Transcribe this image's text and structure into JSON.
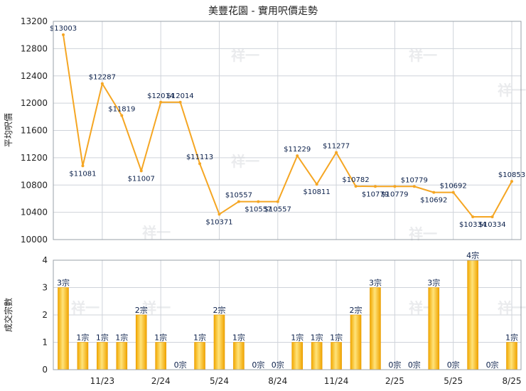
{
  "chart_data": [
    {
      "type": "line",
      "title": "美豐花園 - 實用呎價走勢",
      "ylabel": "平均呎價",
      "ylim": [
        10000,
        13200
      ],
      "yticks": [
        10000,
        10400,
        10800,
        11200,
        11600,
        12000,
        12400,
        12800,
        13200
      ],
      "x_tick_labels": [
        "11/23",
        "2/24",
        "5/24",
        "8/24",
        "11/24",
        "2/25",
        "5/25",
        "8/25"
      ],
      "values": [
        13003,
        11081,
        12287,
        11819,
        11007,
        12014,
        12014,
        11113,
        10371,
        10557,
        10557,
        10557,
        11229,
        10811,
        11277,
        10782,
        10779,
        10779,
        10779,
        10692,
        10692,
        10334,
        10334,
        10853
      ],
      "data_labels": [
        "$13003",
        "$11081",
        "$12287",
        "$11819",
        "$11007",
        "$12014",
        "$12014",
        "$11113",
        "$10371",
        "$10557",
        "$10557",
        "$10557",
        "$11229",
        "$10811",
        "$11277",
        "$10782",
        "$10779",
        "$10779",
        "$10779",
        "$10692",
        "$10692",
        "$10334",
        "$10334",
        "$10853"
      ],
      "color": "#f5a623",
      "grid": true
    },
    {
      "type": "bar",
      "ylabel": "成交宗數",
      "ylim": [
        0,
        4
      ],
      "yticks": [
        0,
        1,
        2,
        3,
        4
      ],
      "x_tick_labels": [
        "11/23",
        "2/24",
        "5/24",
        "8/24",
        "11/24",
        "2/25",
        "5/25",
        "8/25"
      ],
      "values": [
        3,
        1,
        1,
        1,
        2,
        1,
        0,
        1,
        2,
        1,
        0,
        0,
        1,
        1,
        1,
        2,
        3,
        0,
        0,
        3,
        0,
        4,
        0,
        1
      ],
      "data_labels": [
        "3宗",
        "1宗",
        "1宗",
        "1宗",
        "2宗",
        "1宗",
        "0宗",
        "1宗",
        "2宗",
        "1宗",
        "0宗",
        "0宗",
        "1宗",
        "1宗",
        "1宗",
        "2宗",
        "3宗",
        "0宗",
        "0宗",
        "3宗",
        "0宗",
        "4宗",
        "0宗",
        "1宗"
      ],
      "color": "#f5b800",
      "grid": true
    }
  ],
  "watermark": "祥一",
  "colors": {
    "line": "#f5a623",
    "bar": "#f5b800",
    "grid": "#cfd3da",
    "frame": "#9aa0a8"
  }
}
